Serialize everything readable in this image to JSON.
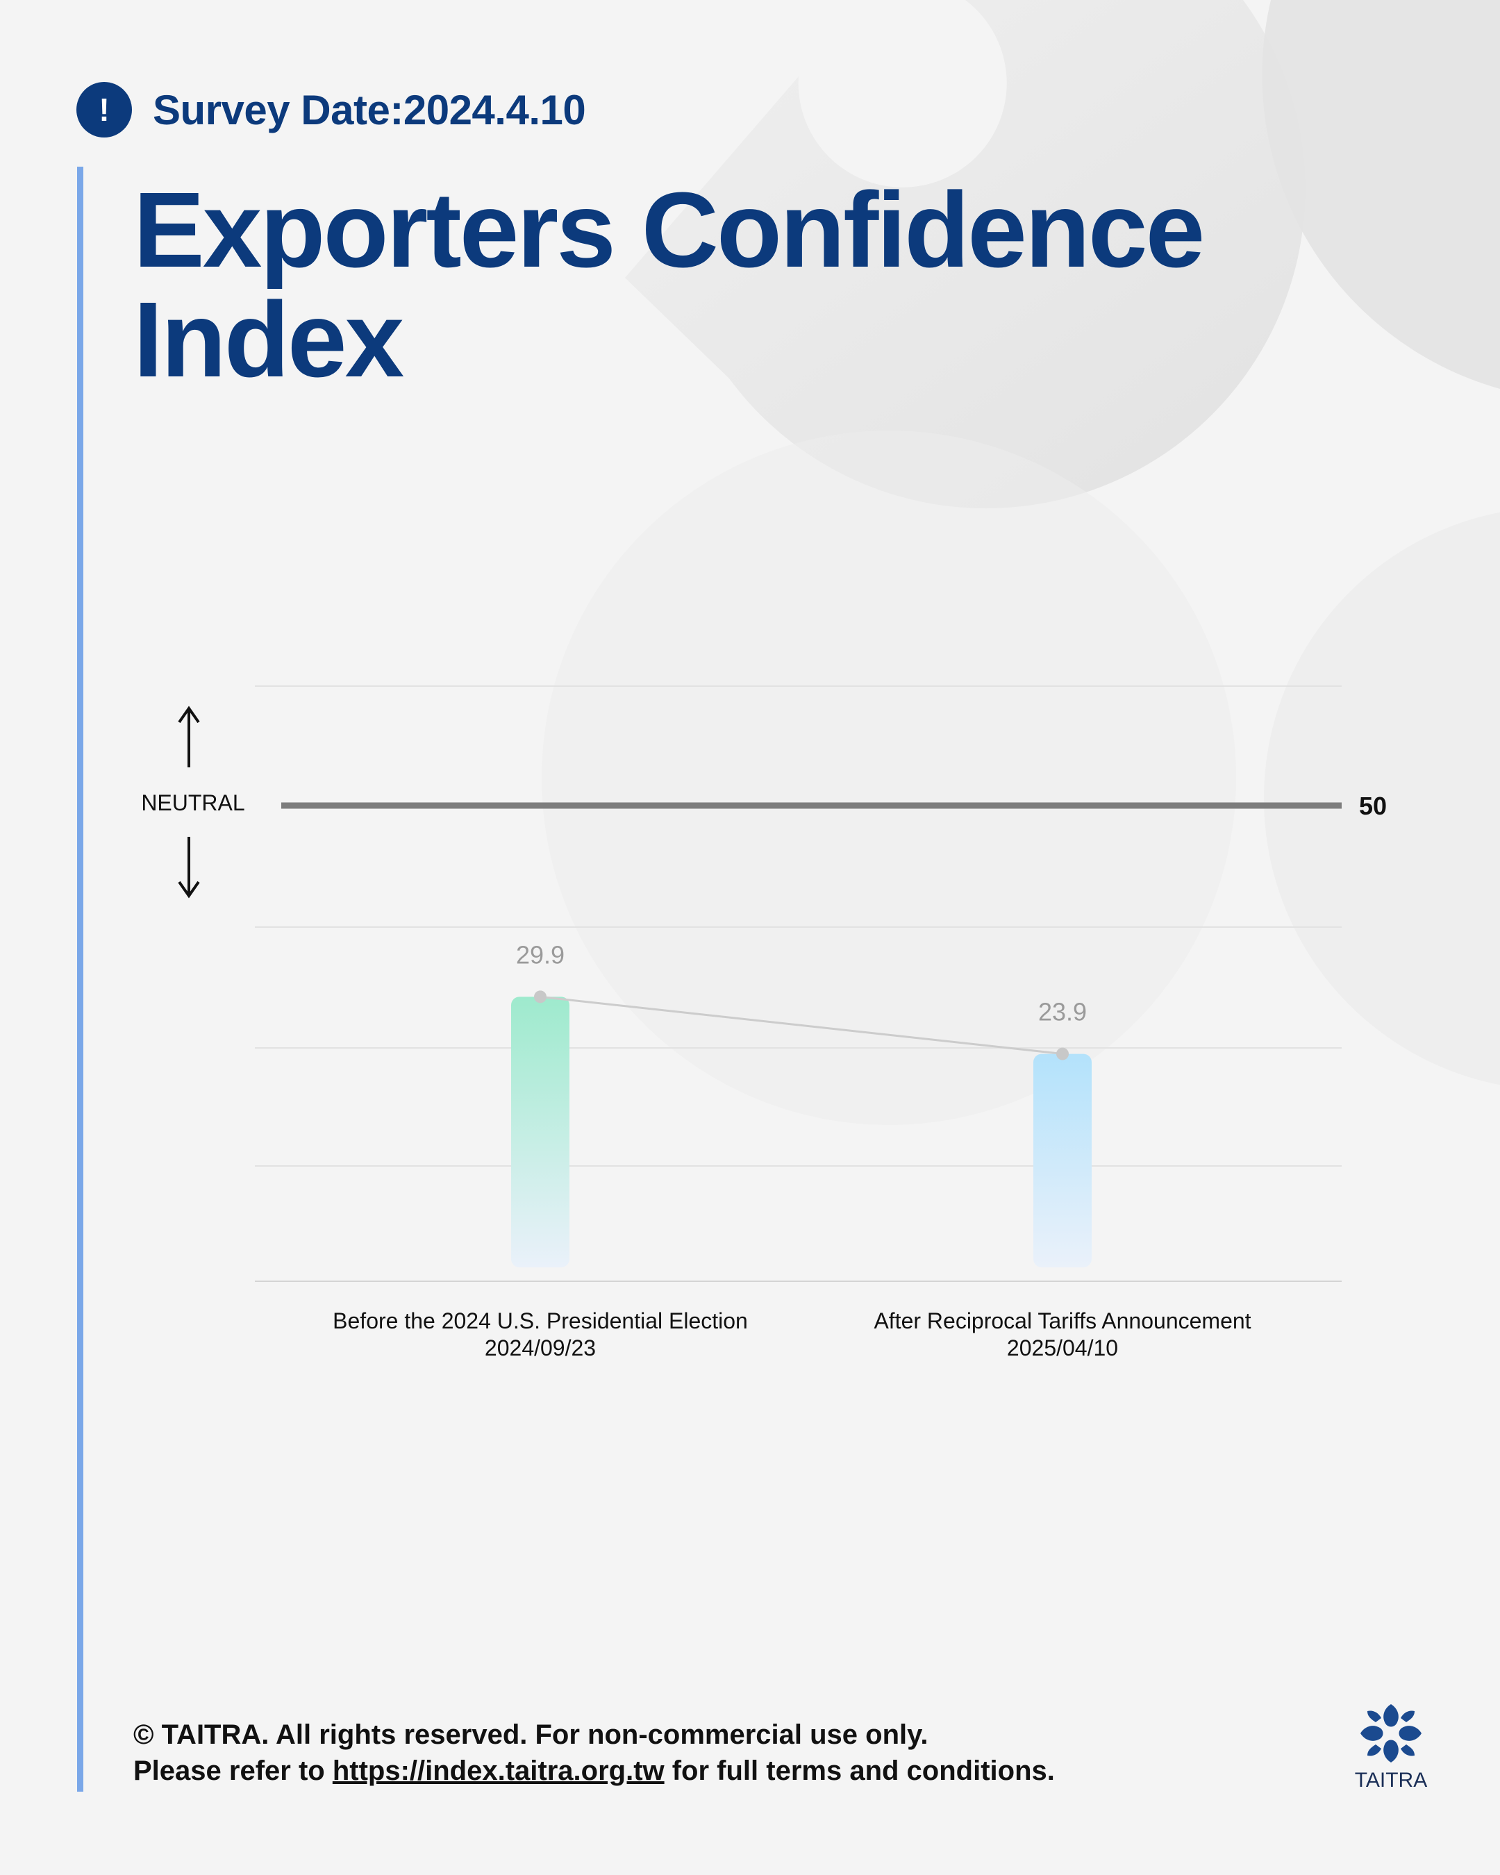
{
  "header": {
    "alert_icon": "exclamation-icon",
    "alert_glyph": "!",
    "survey_date": "Survey Date:2024.4.10"
  },
  "title": "Exporters Confidence Index",
  "chart_data": {
    "type": "bar",
    "categories": [
      [
        "Before the 2024 U.S. Presidential Election",
        "2024/09/23"
      ],
      [
        "After Reciprocal Tariffs Announcement",
        "2025/04/10"
      ]
    ],
    "values": [
      29.9,
      23.9
    ],
    "value_labels": [
      "29.9",
      "23.9"
    ],
    "reference_line": {
      "value": 50,
      "label": "50",
      "name": "NEUTRAL"
    },
    "ylim": [
      0,
      60
    ],
    "grid": true,
    "connector_line": true,
    "title": "",
    "xlabel": "",
    "ylabel": "",
    "colors": {
      "bar1_top": "#9eeacd",
      "bar2_top": "#b3e2fb",
      "bar_bottom": "#eaf1fa",
      "reference": "#7d7d7d",
      "connector": "#cccccc",
      "grid": "#e2e2e2",
      "value_label": "#9a9a9a"
    }
  },
  "footer": {
    "line1": "© TAITRA. All rights reserved. For non-commercial use only.",
    "line2_prefix": "Please refer to ",
    "line2_url": "https://index.taitra.org.tw",
    "line2_suffix": " for full terms and conditions."
  },
  "logo": {
    "text": "TAITRA",
    "icon": "taitra-logo-icon"
  },
  "colors": {
    "brand": "#0c3a7c",
    "accent_bar": "#7aa7e8",
    "background": "#f4f4f4"
  }
}
